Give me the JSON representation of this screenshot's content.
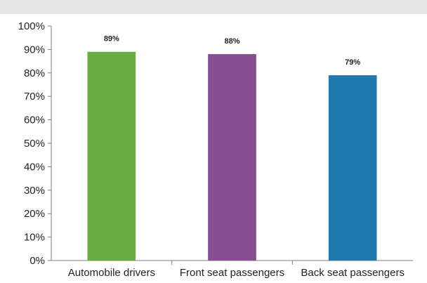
{
  "chart_data": {
    "type": "bar",
    "categories": [
      "Automobile drivers",
      "Front seat passengers",
      "Back seat passengers"
    ],
    "values": [
      89,
      88,
      79
    ],
    "data_labels": [
      "89%",
      "88%",
      "79%"
    ],
    "colors": [
      "#67ad42",
      "#874f92",
      "#2078b0"
    ],
    "ylim": [
      0,
      100
    ],
    "yticks": [
      0,
      10,
      20,
      30,
      40,
      50,
      60,
      70,
      80,
      90,
      100
    ],
    "ytick_labels": [
      "0%",
      "10%",
      "20%",
      "30%",
      "40%",
      "50%",
      "60%",
      "70%",
      "80%",
      "90%",
      "100%"
    ],
    "title": "",
    "xlabel": "",
    "ylabel": "",
    "grid": false,
    "legend": "none"
  }
}
